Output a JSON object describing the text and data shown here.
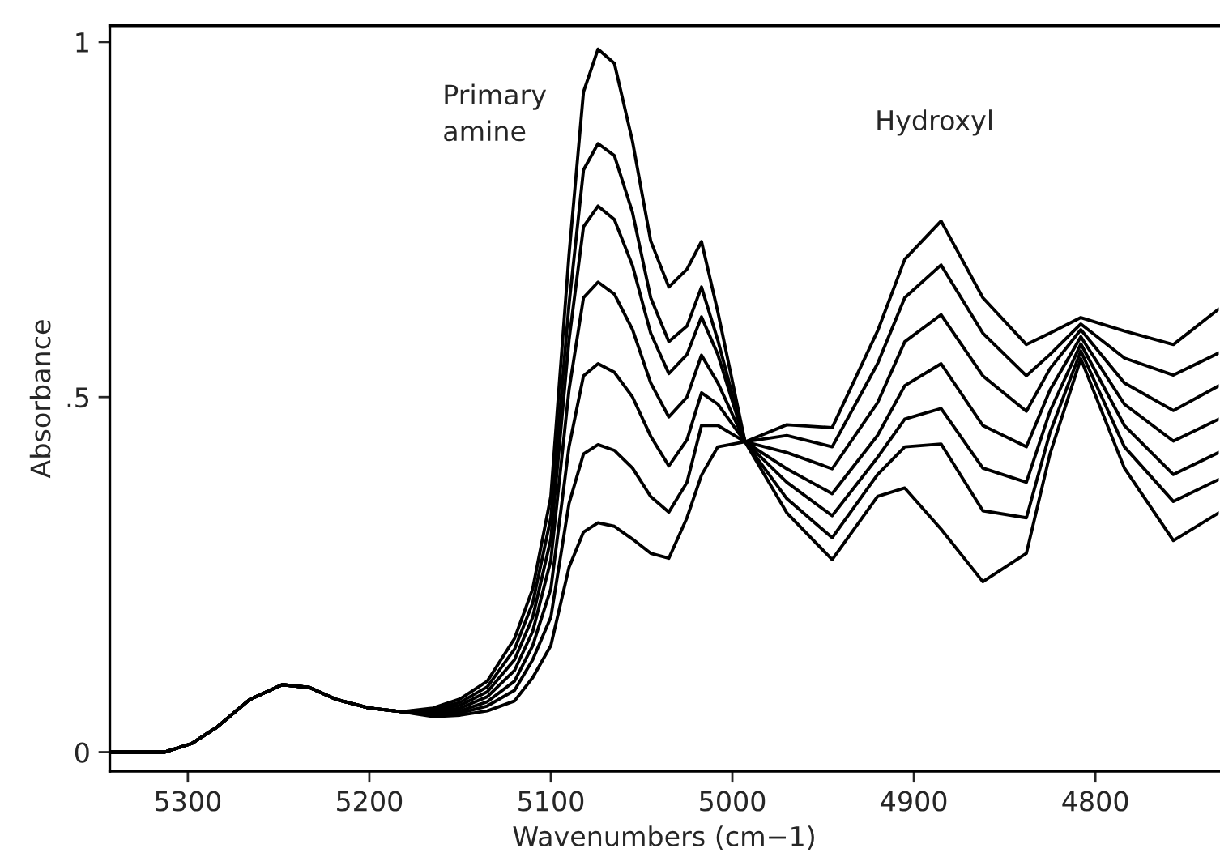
{
  "chart_data": {
    "type": "line",
    "xlabel": "Wavenumbers (cm−1)",
    "ylabel": "Absorbance",
    "annotations": [
      "Primary\namine",
      "Hydroxyl"
    ],
    "x": [
      5343,
      5331,
      5313,
      5298,
      5284,
      5266,
      5248,
      5233,
      5218,
      5200,
      5182,
      5165,
      5150,
      5135,
      5120,
      5110,
      5100,
      5090,
      5082,
      5074,
      5065,
      5055,
      5045,
      5035,
      5025,
      5017,
      5008,
      4993,
      4970,
      4945,
      4920,
      4905,
      4885,
      4862,
      4838,
      4825,
      4808,
      4784,
      4757,
      4732
    ],
    "series": [
      {
        "color": "#000000",
        "values": [
          0,
          0,
          0,
          0.012,
          0.035,
          0.074,
          0.095,
          0.091,
          0.074,
          0.062,
          0.057,
          0.062,
          0.075,
          0.1,
          0.16,
          0.23,
          0.36,
          0.7,
          0.93,
          0.99,
          0.97,
          0.86,
          0.72,
          0.655,
          0.68,
          0.719,
          0.62,
          0.437,
          0.337,
          0.271,
          0.36,
          0.372,
          0.314,
          0.24,
          0.28,
          0.42,
          0.554,
          0.4,
          0.298,
          0.337
        ]
      },
      {
        "color": "#000000",
        "values": [
          0,
          0,
          0,
          0.012,
          0.035,
          0.074,
          0.095,
          0.091,
          0.074,
          0.062,
          0.057,
          0.06,
          0.07,
          0.092,
          0.145,
          0.21,
          0.33,
          0.63,
          0.82,
          0.857,
          0.84,
          0.76,
          0.64,
          0.578,
          0.6,
          0.655,
          0.58,
          0.437,
          0.357,
          0.302,
          0.391,
          0.43,
          0.434,
          0.34,
          0.33,
          0.45,
          0.565,
          0.43,
          0.353,
          0.384
        ]
      },
      {
        "color": "#000000",
        "values": [
          0,
          0,
          0,
          0.012,
          0.035,
          0.074,
          0.095,
          0.091,
          0.074,
          0.062,
          0.057,
          0.058,
          0.066,
          0.085,
          0.13,
          0.19,
          0.3,
          0.58,
          0.74,
          0.769,
          0.75,
          0.685,
          0.59,
          0.533,
          0.56,
          0.613,
          0.56,
          0.437,
          0.38,
          0.333,
          0.415,
          0.469,
          0.484,
          0.4,
          0.38,
          0.48,
          0.575,
          0.46,
          0.391,
          0.422
        ]
      },
      {
        "color": "#000000",
        "values": [
          0,
          0,
          0,
          0.012,
          0.035,
          0.074,
          0.095,
          0.091,
          0.074,
          0.062,
          0.057,
          0.056,
          0.062,
          0.078,
          0.115,
          0.17,
          0.27,
          0.51,
          0.64,
          0.662,
          0.645,
          0.595,
          0.52,
          0.472,
          0.5,
          0.559,
          0.52,
          0.437,
          0.399,
          0.364,
          0.446,
          0.516,
          0.547,
          0.46,
          0.43,
          0.51,
          0.585,
          0.49,
          0.438,
          0.469
        ]
      },
      {
        "color": "#000000",
        "values": [
          0,
          0,
          0,
          0.012,
          0.035,
          0.074,
          0.095,
          0.091,
          0.074,
          0.062,
          0.057,
          0.054,
          0.058,
          0.071,
          0.1,
          0.15,
          0.23,
          0.43,
          0.53,
          0.547,
          0.535,
          0.5,
          0.445,
          0.403,
          0.44,
          0.506,
          0.49,
          0.437,
          0.422,
          0.399,
          0.492,
          0.578,
          0.616,
          0.53,
          0.48,
          0.54,
          0.595,
          0.52,
          0.481,
          0.516
        ]
      },
      {
        "color": "#000000",
        "values": [
          0,
          0,
          0,
          0.012,
          0.035,
          0.074,
          0.095,
          0.091,
          0.074,
          0.062,
          0.057,
          0.052,
          0.055,
          0.065,
          0.087,
          0.13,
          0.19,
          0.35,
          0.42,
          0.433,
          0.425,
          0.4,
          0.36,
          0.338,
          0.38,
          0.46,
          0.46,
          0.437,
          0.446,
          0.43,
          0.547,
          0.64,
          0.686,
          0.59,
          0.53,
          0.56,
          0.603,
          0.555,
          0.531,
          0.562
        ]
      },
      {
        "color": "#000000",
        "values": [
          0,
          0,
          0,
          0.012,
          0.035,
          0.074,
          0.095,
          0.091,
          0.074,
          0.062,
          0.057,
          0.05,
          0.052,
          0.058,
          0.072,
          0.105,
          0.15,
          0.26,
          0.31,
          0.323,
          0.318,
          0.3,
          0.28,
          0.273,
          0.33,
          0.39,
          0.43,
          0.437,
          0.461,
          0.457,
          0.593,
          0.694,
          0.748,
          0.64,
          0.574,
          0.59,
          0.612,
          0.593,
          0.574,
          0.624
        ]
      }
    ],
    "xlim": [
      5343,
      4732
    ],
    "xticks": [
      5300,
      5200,
      5100,
      5000,
      4900,
      4800
    ],
    "ylim": [
      -0.027,
      1.023
    ],
    "yticks": [
      0,
      {
        "value": 0.5,
        "label": ".5"
      },
      1
    ],
    "grid": false,
    "legend": false,
    "line_style": "solid",
    "marker": "none"
  }
}
